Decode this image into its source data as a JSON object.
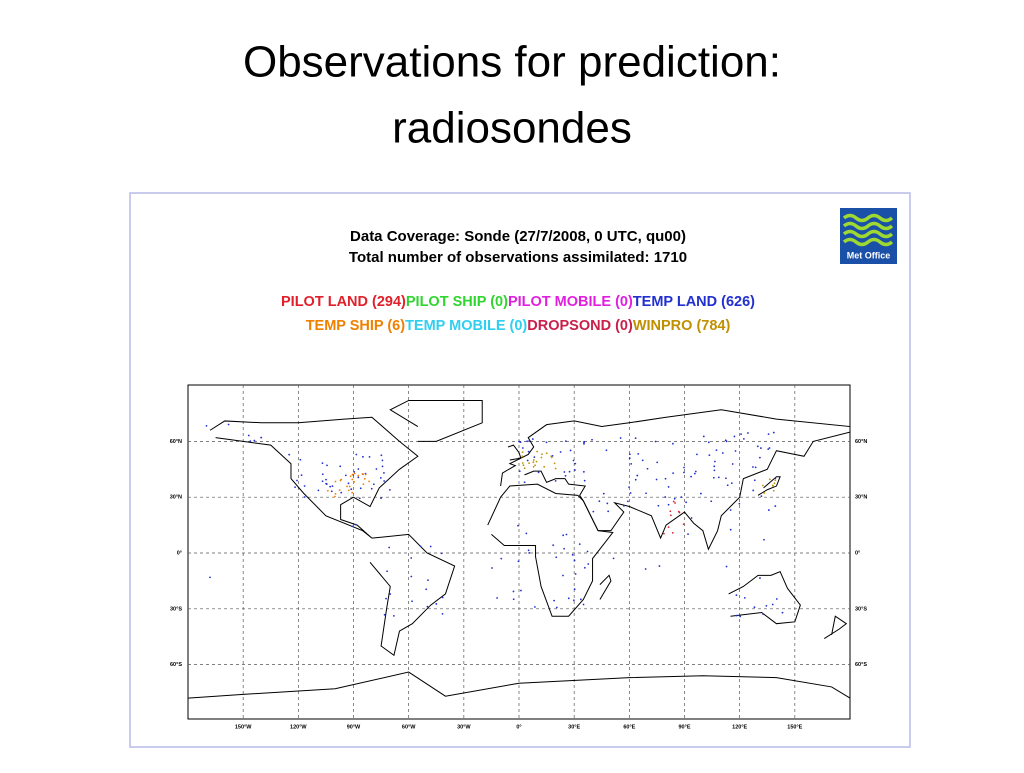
{
  "title": {
    "lines": [
      "Observations for prediction:",
      "radiosondes"
    ]
  },
  "figure": {
    "heading": [
      "Data Coverage: Sonde  (27/7/2008, 0 UTC, qu00)",
      "Total number of observations assimilated: 1710"
    ],
    "legend": [
      [
        {
          "label": "PILOT LAND (294)",
          "color": "#e0202a"
        },
        {
          "label": "PILOT SHIP (0)",
          "color": "#30d630"
        },
        {
          "label": "PILOT MOBILE (0)",
          "color": "#e020e0"
        },
        {
          "label": "TEMP LAND (626)",
          "color": "#2230d0"
        }
      ],
      [
        {
          "label": "TEMP SHIP (6)",
          "color": "#f08000"
        },
        {
          "label": "TEMP MOBILE (0)",
          "color": "#30cff0"
        },
        {
          "label": "DROPSOND (0)",
          "color": "#c8204a"
        },
        {
          "label": "WINPRO (784)",
          "color": "#c09000"
        }
      ]
    ],
    "logo": "Met Office",
    "lat_labels": [
      "60°N",
      "30°N",
      "0°",
      "30°S",
      "60°S"
    ],
    "lon_labels": [
      "150°W",
      "120°W",
      "90°W",
      "60°W",
      "30°W",
      "0°",
      "30°E",
      "60°E",
      "90°E",
      "120°E",
      "150°E"
    ]
  }
}
